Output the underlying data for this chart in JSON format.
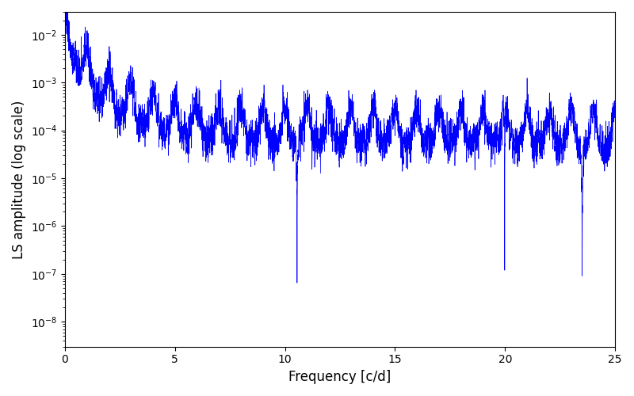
{
  "title": "",
  "xlabel": "Frequency [c/d]",
  "ylabel": "LS amplitude (log scale)",
  "line_color": "#0000ff",
  "line_width": 0.5,
  "xlim": [
    0,
    25
  ],
  "ylim": [
    3e-09,
    0.03
  ],
  "yscale": "log",
  "background_color": "#ffffff",
  "figsize": [
    8.0,
    5.0
  ],
  "dpi": 100,
  "freq_min": 0.0,
  "freq_max": 25.0,
  "n_points": 8000,
  "seed": 137
}
